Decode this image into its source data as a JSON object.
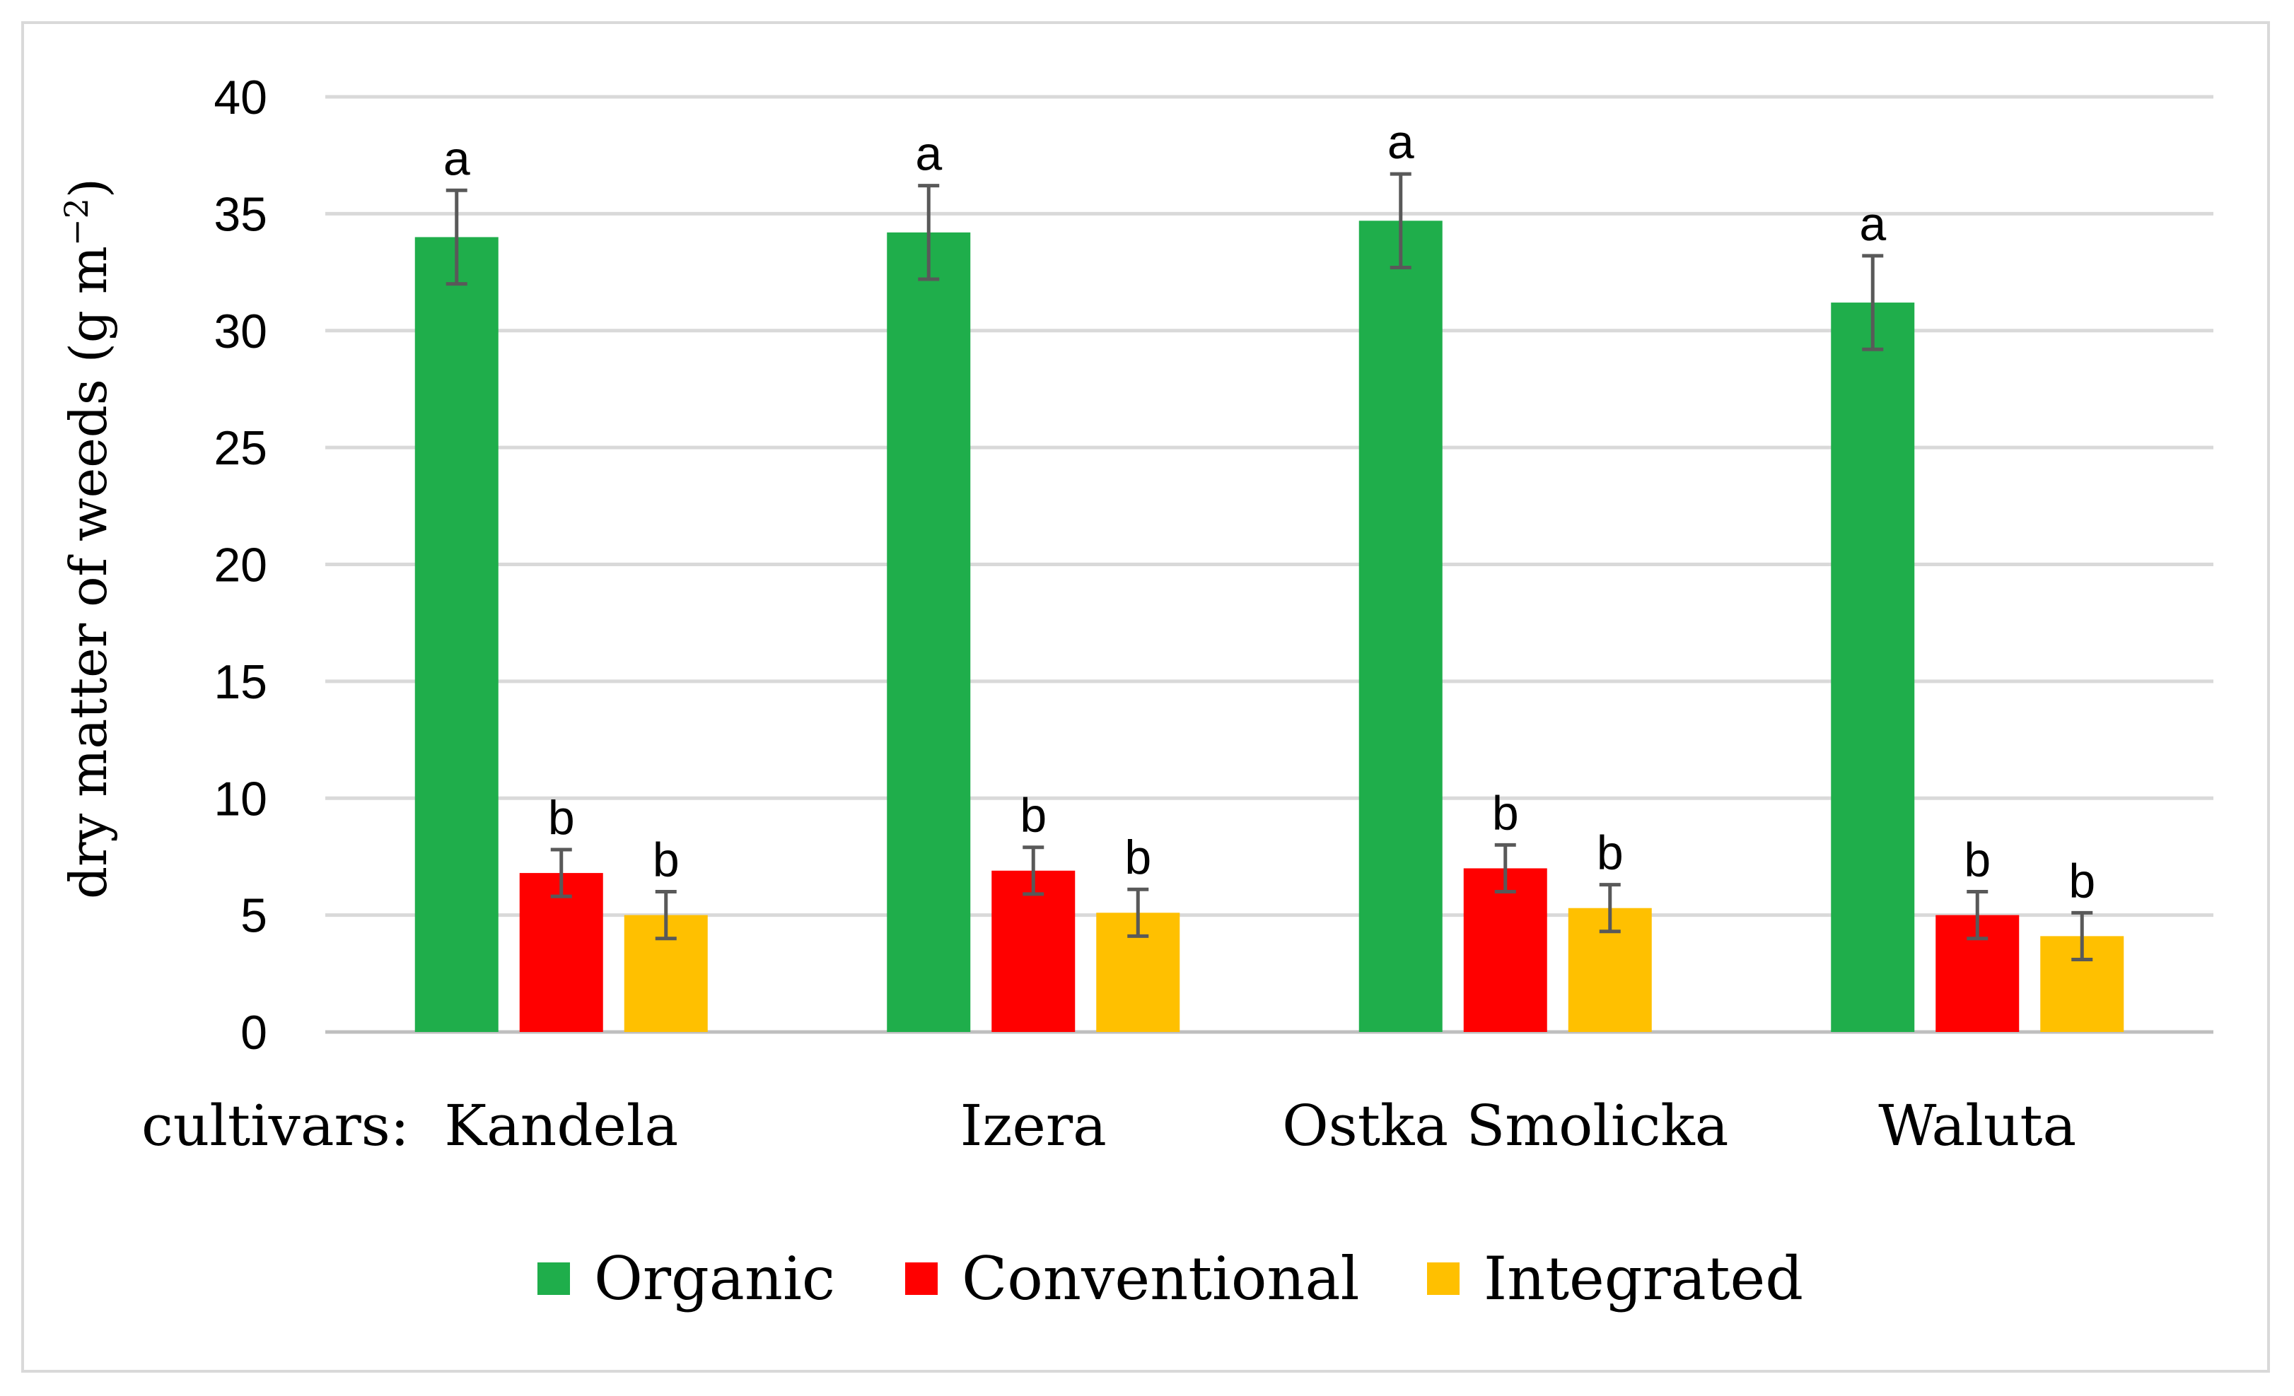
{
  "chart_data": {
    "type": "bar",
    "ylabel": "dry matter of weeds (g m",
    "ylabel_sup": "−2",
    "ylabel_end": ")",
    "x_prefix": "cultivars:",
    "categories": [
      "Kandela",
      "Izera",
      "Ostka Smolicka",
      "Waluta"
    ],
    "ylim": [
      0,
      40
    ],
    "yticks": [
      0,
      5,
      10,
      15,
      20,
      25,
      30,
      35,
      40
    ],
    "grid": true,
    "legend_position": "bottom",
    "series": [
      {
        "name": "Organic",
        "color": "#1fae4b",
        "values": [
          34.0,
          34.2,
          34.7,
          31.2
        ],
        "errors": [
          2.0,
          2.0,
          2.0,
          2.0
        ],
        "letters": [
          "a",
          "a",
          "a",
          "a"
        ]
      },
      {
        "name": "Conventional",
        "color": "#ff0000",
        "values": [
          6.8,
          6.9,
          7.0,
          5.0
        ],
        "errors": [
          1.0,
          1.0,
          1.0,
          1.0
        ],
        "letters": [
          "b",
          "b",
          "b",
          "b"
        ]
      },
      {
        "name": "Integrated",
        "color": "#ffc000",
        "values": [
          5.0,
          5.1,
          5.3,
          4.1
        ],
        "errors": [
          1.0,
          1.0,
          1.0,
          1.0
        ],
        "letters": [
          "b",
          "b",
          "b",
          "b"
        ]
      }
    ]
  }
}
